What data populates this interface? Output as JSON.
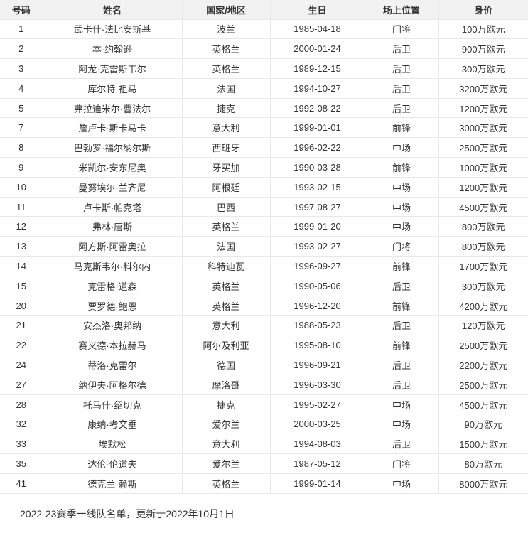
{
  "table": {
    "columns": [
      {
        "label": "号码"
      },
      {
        "label": "姓名"
      },
      {
        "label": "国家/地区"
      },
      {
        "label": "生日"
      },
      {
        "label": "场上位置"
      },
      {
        "label": "身价"
      }
    ],
    "rows": [
      {
        "number": "1",
        "name": "武卡什·法比安斯基",
        "country": "波兰",
        "birthday": "1985-04-18",
        "position": "门将",
        "value": "100万欧元"
      },
      {
        "number": "2",
        "name": "本·约翰逊",
        "country": "英格兰",
        "birthday": "2000-01-24",
        "position": "后卫",
        "value": "900万欧元"
      },
      {
        "number": "3",
        "name": "阿龙·克雷斯韦尔",
        "country": "英格兰",
        "birthday": "1989-12-15",
        "position": "后卫",
        "value": "300万欧元"
      },
      {
        "number": "4",
        "name": "库尔特·祖马",
        "country": "法国",
        "birthday": "1994-10-27",
        "position": "后卫",
        "value": "3200万欧元"
      },
      {
        "number": "5",
        "name": "弗拉迪米尔·曹法尔",
        "country": "捷克",
        "birthday": "1992-08-22",
        "position": "后卫",
        "value": "1200万欧元"
      },
      {
        "number": "7",
        "name": "詹卢卡·斯卡马卡",
        "country": "意大利",
        "birthday": "1999-01-01",
        "position": "前锋",
        "value": "3000万欧元"
      },
      {
        "number": "8",
        "name": "巴勃罗·福尔纳尔斯",
        "country": "西班牙",
        "birthday": "1996-02-22",
        "position": "中场",
        "value": "2500万欧元"
      },
      {
        "number": "9",
        "name": "米凯尔·安东尼奥",
        "country": "牙买加",
        "birthday": "1990-03-28",
        "position": "前锋",
        "value": "1000万欧元"
      },
      {
        "number": "10",
        "name": "曼努埃尔·兰齐尼",
        "country": "阿根廷",
        "birthday": "1993-02-15",
        "position": "中场",
        "value": "1200万欧元"
      },
      {
        "number": "11",
        "name": "卢卡斯·帕克塔",
        "country": "巴西",
        "birthday": "1997-08-27",
        "position": "中场",
        "value": "4500万欧元"
      },
      {
        "number": "12",
        "name": "弗林·唐斯",
        "country": "英格兰",
        "birthday": "1999-01-20",
        "position": "中场",
        "value": "800万欧元"
      },
      {
        "number": "13",
        "name": "阿方斯·阿雷奥拉",
        "country": "法国",
        "birthday": "1993-02-27",
        "position": "门将",
        "value": "800万欧元"
      },
      {
        "number": "14",
        "name": "马克斯韦尔·科尔内",
        "country": "科特迪瓦",
        "birthday": "1996-09-27",
        "position": "前锋",
        "value": "1700万欧元"
      },
      {
        "number": "15",
        "name": "克雷格·道森",
        "country": "英格兰",
        "birthday": "1990-05-06",
        "position": "后卫",
        "value": "300万欧元"
      },
      {
        "number": "20",
        "name": "贾罗德·鲍恩",
        "country": "英格兰",
        "birthday": "1996-12-20",
        "position": "前锋",
        "value": "4200万欧元"
      },
      {
        "number": "21",
        "name": "安杰洛·奥邦纳",
        "country": "意大利",
        "birthday": "1988-05-23",
        "position": "后卫",
        "value": "120万欧元"
      },
      {
        "number": "22",
        "name": "赛义德·本拉赫马",
        "country": "阿尔及利亚",
        "birthday": "1995-08-10",
        "position": "前锋",
        "value": "2500万欧元"
      },
      {
        "number": "24",
        "name": "蒂洛·克雷尔",
        "country": "德国",
        "birthday": "1996-09-21",
        "position": "后卫",
        "value": "2200万欧元"
      },
      {
        "number": "27",
        "name": "纳伊夫·阿格尔德",
        "country": "摩洛哥",
        "birthday": "1996-03-30",
        "position": "后卫",
        "value": "2500万欧元"
      },
      {
        "number": "28",
        "name": "托马什·绍切克",
        "country": "捷克",
        "birthday": "1995-02-27",
        "position": "中场",
        "value": "4500万欧元"
      },
      {
        "number": "32",
        "name": "康纳·考文垂",
        "country": "爱尔兰",
        "birthday": "2000-03-25",
        "position": "中场",
        "value": "90万欧元"
      },
      {
        "number": "33",
        "name": "埃默松",
        "country": "意大利",
        "birthday": "1994-08-03",
        "position": "后卫",
        "value": "1500万欧元"
      },
      {
        "number": "35",
        "name": "达伦·伦道夫",
        "country": "爱尔兰",
        "birthday": "1987-05-12",
        "position": "门将",
        "value": "80万欧元"
      },
      {
        "number": "41",
        "name": "德克兰·赖斯",
        "country": "英格兰",
        "birthday": "1999-01-14",
        "position": "中场",
        "value": "8000万欧元"
      }
    ]
  },
  "footer": {
    "note": "2022-23赛季一线队名单，更新于2022年10月1日"
  },
  "colors": {
    "header_bg": "#f2f2f2",
    "row_bg": "#ffffff",
    "border": "#e8e8e8",
    "text": "#333333"
  }
}
